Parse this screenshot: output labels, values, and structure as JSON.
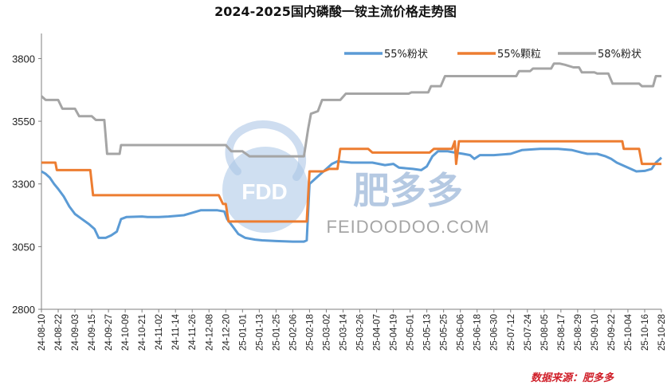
{
  "chart_data": {
    "type": "line",
    "title": "2024-2025国内磷酸一铵主流价格走势图",
    "source_note": "数据来源：肥多多",
    "watermark": {
      "logo_text": "FDD",
      "brand": "肥多多",
      "url": "FEIDOODOO.COM"
    },
    "ylim": [
      2800,
      3900
    ],
    "yticks": [
      2800,
      3050,
      3300,
      3550,
      3800
    ],
    "grid": false,
    "legend_position": "top-right",
    "x_start": "2024-08-10",
    "x_end": "2025-10-28",
    "x_tick_labels": [
      "24-08-10",
      "24-08-22",
      "24-09-03",
      "24-09-15",
      "24-09-27",
      "24-10-09",
      "24-10-21",
      "24-11-02",
      "24-11-14",
      "24-11-26",
      "24-12-08",
      "24-12-20",
      "25-01-01",
      "25-01-13",
      "25-01-25",
      "25-02-06",
      "25-02-18",
      "25-03-02",
      "25-03-14",
      "25-03-26",
      "25-04-07",
      "25-04-19",
      "25-05-01",
      "25-05-13",
      "25-05-25",
      "25-06-06",
      "25-06-18",
      "25-06-30",
      "25-07-12",
      "25-07-24",
      "25-08-05",
      "25-08-17",
      "25-08-29",
      "25-09-10",
      "25-09-22",
      "25-10-04",
      "25-10-16",
      "25-10-28"
    ],
    "series": [
      {
        "name": "55%粉状",
        "color": "#5b9bd5",
        "points": [
          [
            "2024-08-10",
            3350
          ],
          [
            "2024-08-13",
            3340
          ],
          [
            "2024-08-16",
            3325
          ],
          [
            "2024-08-19",
            3300
          ],
          [
            "2024-08-22",
            3280
          ],
          [
            "2024-08-26",
            3250
          ],
          [
            "2024-08-30",
            3210
          ],
          [
            "2024-09-03",
            3180
          ],
          [
            "2024-09-08",
            3160
          ],
          [
            "2024-09-13",
            3140
          ],
          [
            "2024-09-17",
            3120
          ],
          [
            "2024-09-20",
            3085
          ],
          [
            "2024-09-25",
            3085
          ],
          [
            "2024-09-29",
            3095
          ],
          [
            "2024-10-03",
            3110
          ],
          [
            "2024-10-06",
            3160
          ],
          [
            "2024-10-10",
            3168
          ],
          [
            "2024-10-21",
            3170
          ],
          [
            "2024-10-25",
            3168
          ],
          [
            "2024-11-02",
            3168
          ],
          [
            "2024-11-09",
            3170
          ],
          [
            "2024-11-20",
            3175
          ],
          [
            "2024-11-26",
            3185
          ],
          [
            "2024-12-02",
            3195
          ],
          [
            "2024-12-14",
            3195
          ],
          [
            "2024-12-19",
            3190
          ],
          [
            "2024-12-21",
            3160
          ],
          [
            "2024-12-25",
            3130
          ],
          [
            "2024-12-29",
            3100
          ],
          [
            "2025-01-03",
            3085
          ],
          [
            "2025-01-10",
            3078
          ],
          [
            "2025-01-15",
            3075
          ],
          [
            "2025-01-25",
            3072
          ],
          [
            "2025-02-06",
            3070
          ],
          [
            "2025-02-14",
            3070
          ],
          [
            "2025-02-16",
            3075
          ],
          [
            "2025-02-18",
            3300
          ],
          [
            "2025-02-24",
            3330
          ],
          [
            "2025-03-02",
            3360
          ],
          [
            "2025-03-06",
            3380
          ],
          [
            "2025-03-10",
            3390
          ],
          [
            "2025-03-20",
            3385
          ],
          [
            "2025-04-04",
            3385
          ],
          [
            "2025-04-13",
            3375
          ],
          [
            "2025-04-19",
            3380
          ],
          [
            "2025-04-23",
            3365
          ],
          [
            "2025-05-03",
            3360
          ],
          [
            "2025-05-09",
            3355
          ],
          [
            "2025-05-13",
            3370
          ],
          [
            "2025-05-17",
            3410
          ],
          [
            "2025-05-21",
            3430
          ],
          [
            "2025-05-28",
            3430
          ],
          [
            "2025-06-02",
            3425
          ],
          [
            "2025-06-08",
            3420
          ],
          [
            "2025-06-13",
            3415
          ],
          [
            "2025-06-16",
            3400
          ],
          [
            "2025-06-20",
            3415
          ],
          [
            "2025-06-30",
            3415
          ],
          [
            "2025-07-12",
            3420
          ],
          [
            "2025-07-20",
            3435
          ],
          [
            "2025-08-02",
            3440
          ],
          [
            "2025-08-15",
            3440
          ],
          [
            "2025-08-25",
            3435
          ],
          [
            "2025-09-01",
            3425
          ],
          [
            "2025-09-05",
            3420
          ],
          [
            "2025-09-12",
            3420
          ],
          [
            "2025-09-18",
            3410
          ],
          [
            "2025-09-22",
            3400
          ],
          [
            "2025-09-26",
            3385
          ],
          [
            "2025-10-04",
            3365
          ],
          [
            "2025-10-10",
            3350
          ],
          [
            "2025-10-16",
            3352
          ],
          [
            "2025-10-21",
            3360
          ],
          [
            "2025-10-24",
            3385
          ],
          [
            "2025-10-28",
            3405
          ]
        ]
      },
      {
        "name": "55%颗粒",
        "color": "#ed7d31",
        "points": [
          [
            "2024-08-10",
            3385
          ],
          [
            "2024-08-20",
            3385
          ],
          [
            "2024-08-21",
            3355
          ],
          [
            "2024-09-14",
            3355
          ],
          [
            "2024-09-16",
            3255
          ],
          [
            "2024-12-15",
            3255
          ],
          [
            "2024-12-18",
            3220
          ],
          [
            "2024-12-20",
            3220
          ],
          [
            "2024-12-22",
            3150
          ],
          [
            "2025-02-16",
            3150
          ],
          [
            "2025-02-18",
            3350
          ],
          [
            "2025-02-28",
            3350
          ],
          [
            "2025-03-04",
            3360
          ],
          [
            "2025-03-10",
            3360
          ],
          [
            "2025-03-12",
            3440
          ],
          [
            "2025-04-01",
            3440
          ],
          [
            "2025-04-04",
            3425
          ],
          [
            "2025-05-15",
            3425
          ],
          [
            "2025-05-18",
            3440
          ],
          [
            "2025-05-28",
            3440
          ],
          [
            "2025-05-31",
            3440
          ],
          [
            "2025-06-02",
            3470
          ],
          [
            "2025-06-03",
            3380
          ],
          [
            "2025-06-05",
            3470
          ],
          [
            "2025-09-30",
            3470
          ],
          [
            "2025-10-01",
            3440
          ],
          [
            "2025-10-12",
            3440
          ],
          [
            "2025-10-14",
            3380
          ],
          [
            "2025-10-28",
            3380
          ]
        ]
      },
      {
        "name": "58%粉状",
        "color": "#a5a5a5",
        "points": [
          [
            "2024-08-10",
            3650
          ],
          [
            "2024-08-13",
            3635
          ],
          [
            "2024-08-22",
            3635
          ],
          [
            "2024-08-25",
            3600
          ],
          [
            "2024-09-03",
            3600
          ],
          [
            "2024-09-06",
            3570
          ],
          [
            "2024-09-15",
            3570
          ],
          [
            "2024-09-18",
            3555
          ],
          [
            "2024-09-24",
            3555
          ],
          [
            "2024-09-26",
            3420
          ],
          [
            "2024-10-05",
            3420
          ],
          [
            "2024-10-06",
            3455
          ],
          [
            "2024-12-20",
            3455
          ],
          [
            "2024-12-24",
            3430
          ],
          [
            "2025-01-01",
            3430
          ],
          [
            "2025-01-06",
            3410
          ],
          [
            "2025-02-14",
            3410
          ],
          [
            "2025-02-17",
            3520
          ],
          [
            "2025-02-19",
            3580
          ],
          [
            "2025-02-24",
            3590
          ],
          [
            "2025-02-27",
            3635
          ],
          [
            "2025-03-12",
            3635
          ],
          [
            "2025-03-16",
            3660
          ],
          [
            "2025-04-30",
            3660
          ],
          [
            "2025-05-02",
            3665
          ],
          [
            "2025-05-14",
            3665
          ],
          [
            "2025-05-16",
            3690
          ],
          [
            "2025-05-23",
            3690
          ],
          [
            "2025-05-26",
            3730
          ],
          [
            "2025-07-16",
            3730
          ],
          [
            "2025-07-18",
            3750
          ],
          [
            "2025-07-26",
            3750
          ],
          [
            "2025-07-28",
            3760
          ],
          [
            "2025-08-10",
            3760
          ],
          [
            "2025-08-12",
            3780
          ],
          [
            "2025-08-16",
            3780
          ],
          [
            "2025-08-20",
            3775
          ],
          [
            "2025-08-26",
            3765
          ],
          [
            "2025-08-30",
            3765
          ],
          [
            "2025-09-01",
            3745
          ],
          [
            "2025-09-10",
            3745
          ],
          [
            "2025-09-12",
            3740
          ],
          [
            "2025-09-20",
            3740
          ],
          [
            "2025-09-23",
            3700
          ],
          [
            "2025-10-12",
            3700
          ],
          [
            "2025-10-14",
            3690
          ],
          [
            "2025-10-22",
            3690
          ],
          [
            "2025-10-24",
            3730
          ],
          [
            "2025-10-28",
            3730
          ]
        ]
      }
    ]
  }
}
